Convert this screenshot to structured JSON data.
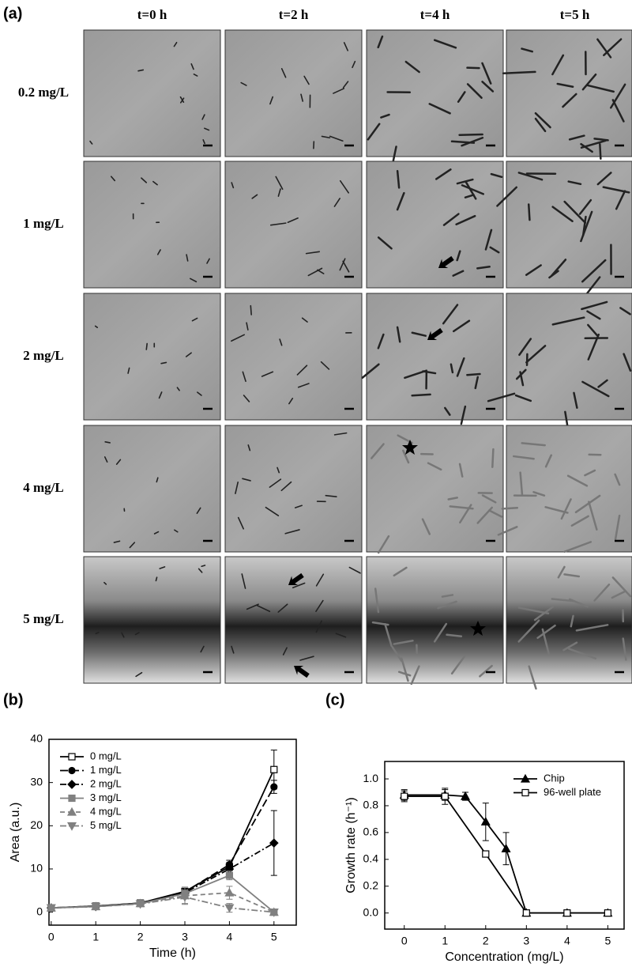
{
  "panels": {
    "a": "(a)",
    "b": "(b)",
    "c": "(c)"
  },
  "grid": {
    "columns": [
      "t=0 h",
      "t=2 h",
      "t=4 h",
      "t=5 h"
    ],
    "rows": [
      "0.2 mg/L",
      "1 mg/L",
      "2 mg/L",
      "4 mg/L",
      "5 mg/L"
    ]
  },
  "chart_data": [
    {
      "type": "line",
      "xlabel": "Time (h)",
      "ylabel": "Area (a.u.)",
      "x": [
        0,
        1,
        2,
        3,
        4,
        5
      ],
      "xlim": [
        -0.05,
        5.5
      ],
      "ylim": [
        -3,
        40
      ],
      "xticks": [
        0,
        1,
        2,
        3,
        4,
        5
      ],
      "yticks": [
        0,
        10,
        20,
        30,
        40
      ],
      "legend": "upper-left",
      "series": [
        {
          "name": "0 mg/L",
          "color": "#000000",
          "dash": "solid",
          "marker": "square-open",
          "values": [
            1,
            1.4,
            2.1,
            4.8,
            10.5,
            33
          ],
          "errors": [
            0,
            0,
            0,
            0.5,
            1.5,
            4.5
          ]
        },
        {
          "name": "1 mg/L",
          "color": "#000000",
          "dash": "longdash",
          "marker": "circle",
          "values": [
            1,
            1.4,
            2.1,
            4.7,
            11,
            29
          ],
          "errors": [
            0,
            0,
            0,
            0.4,
            1,
            1.5
          ]
        },
        {
          "name": "2 mg/L",
          "color": "#000000",
          "dash": "dashdot",
          "marker": "diamond",
          "values": [
            1,
            1.3,
            2.0,
            4.5,
            10,
            16
          ],
          "errors": [
            0,
            0,
            0,
            0.5,
            1.5,
            7.5
          ]
        },
        {
          "name": "3 mg/L",
          "color": "#808080",
          "dash": "solid",
          "marker": "square",
          "values": [
            1,
            1.3,
            2.0,
            4.3,
            8.5,
            0
          ],
          "errors": [
            0,
            0,
            0,
            0.8,
            1,
            0
          ]
        },
        {
          "name": "4 mg/L",
          "color": "#808080",
          "dash": "dashed",
          "marker": "triangle",
          "values": [
            1,
            1.3,
            2.0,
            3.8,
            4.5,
            0
          ],
          "errors": [
            0,
            0,
            0,
            2,
            1.5,
            0
          ]
        },
        {
          "name": "5 mg/L",
          "color": "#808080",
          "dash": "dashdot",
          "marker": "triangle-down",
          "values": [
            1,
            1.3,
            1.9,
            3.5,
            1,
            0
          ],
          "errors": [
            0,
            0,
            0,
            1.5,
            1,
            0
          ]
        }
      ]
    },
    {
      "type": "line",
      "xlabel": "Concentration (mg/L)",
      "ylabel": "Growth rate (h⁻¹)",
      "xlim": [
        -0.48,
        5.4
      ],
      "ylim": [
        -0.12,
        1.13
      ],
      "xticks": [
        0,
        1,
        2,
        3,
        4,
        5
      ],
      "yticks": [
        {
          "value": 0,
          "label": "0.0"
        },
        {
          "value": 0.2,
          "label": "0.2"
        },
        {
          "value": 0.4,
          "label": "0.4"
        },
        {
          "value": 0.6,
          "label": "0.6"
        },
        {
          "value": 0.8,
          "label": "0.8"
        },
        {
          "value": 1,
          "label": "1.0"
        }
      ],
      "legend": "upper-right",
      "series": [
        {
          "name": "Chip",
          "color": "#000000",
          "dash": "solid",
          "marker": "triangle",
          "x": [
            0,
            1,
            1.5,
            2,
            2.5,
            3,
            4,
            5
          ],
          "values": [
            0.88,
            0.88,
            0.87,
            0.68,
            0.48,
            0,
            0,
            0
          ],
          "errors": [
            0.04,
            0.04,
            0.03,
            0.14,
            0.12,
            0,
            0,
            0
          ]
        },
        {
          "name": "96-well plate",
          "color": "#000000",
          "dash": "solid",
          "marker": "square-open",
          "x": [
            0,
            1,
            2,
            3,
            4,
            5
          ],
          "values": [
            0.87,
            0.87,
            0.44,
            0,
            0,
            0
          ],
          "errors": [
            0.04,
            0.06,
            0,
            0,
            0,
            0
          ]
        }
      ]
    }
  ]
}
